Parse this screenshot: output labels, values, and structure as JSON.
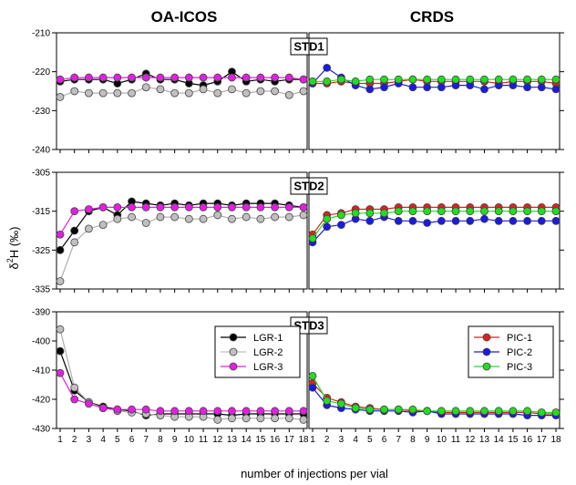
{
  "figure": {
    "titles": {
      "left": "OA-ICOS",
      "right": "CRDS"
    },
    "ylabel": "δ²H (‰)",
    "ylabel_prefix": "δ",
    "ylabel_sup": "2",
    "ylabel_suffix": "H (‰)",
    "xlabel": "number of injections per vial"
  },
  "chart_data": [
    {
      "type": "line",
      "panel": "STD1",
      "instrument": "OA-ICOS",
      "label": "STD1",
      "x": [
        1,
        2,
        3,
        4,
        5,
        6,
        7,
        8,
        9,
        10,
        11,
        12,
        13,
        14,
        15,
        16,
        17,
        18
      ],
      "ylim": [
        -240,
        -210
      ],
      "yticks": [
        -210,
        -220,
        -230,
        -240
      ],
      "series": [
        {
          "name": "LGR-1",
          "color": "#000000",
          "values": [
            -222.5,
            -222,
            -222,
            -222,
            -223,
            -222,
            -220.5,
            -222,
            -222,
            -223,
            -223.5,
            -222.5,
            -220,
            -222.5,
            -222,
            -222.5,
            -222,
            -222
          ]
        },
        {
          "name": "LGR-2",
          "color": "#c0c0c0",
          "values": [
            -226.5,
            -225,
            -225.5,
            -225.5,
            -225.5,
            -225.5,
            -224,
            -224.5,
            -225.5,
            -225.5,
            -224.5,
            -225.5,
            -224.5,
            -225.5,
            -225,
            -225,
            -226,
            -225
          ]
        },
        {
          "name": "LGR-3",
          "color": "#e020e0",
          "values": [
            -222,
            -221.5,
            -221.5,
            -221.5,
            -221.5,
            -221.5,
            -221.5,
            -221.5,
            -221.5,
            -221.5,
            -221.5,
            -221.5,
            -221.5,
            -221.5,
            -221.5,
            -221.5,
            -221.5,
            -222
          ]
        }
      ]
    },
    {
      "type": "line",
      "panel": "STD1",
      "instrument": "CRDS",
      "x": [
        1,
        2,
        3,
        4,
        5,
        6,
        7,
        8,
        9,
        10,
        11,
        12,
        13,
        14,
        15,
        16,
        17,
        18
      ],
      "ylim": [
        -240,
        -210
      ],
      "series": [
        {
          "name": "PIC-1",
          "color": "#e02020",
          "values": [
            -223,
            -223,
            -222.5,
            -223,
            -223,
            -223,
            -222.5,
            -222,
            -222.5,
            -222.5,
            -222.5,
            -222.5,
            -222.5,
            -223,
            -222.5,
            -222.5,
            -222.5,
            -223
          ]
        },
        {
          "name": "PIC-2",
          "color": "#1a1ae0",
          "values": [
            -223,
            -219,
            -221.5,
            -223.5,
            -224.5,
            -224,
            -223,
            -224,
            -224,
            -224,
            -223.5,
            -223.5,
            -224.5,
            -223.5,
            -223.5,
            -224,
            -224,
            -224.5
          ]
        },
        {
          "name": "PIC-3",
          "color": "#22dd22",
          "values": [
            -222.5,
            -222.5,
            -222,
            -222.5,
            -222,
            -222,
            -222,
            -222,
            -222,
            -222,
            -222,
            -222,
            -222,
            -222,
            -222,
            -222,
            -222,
            -222
          ]
        }
      ]
    },
    {
      "type": "line",
      "panel": "STD2",
      "instrument": "OA-ICOS",
      "label": "STD2",
      "x": [
        1,
        2,
        3,
        4,
        5,
        6,
        7,
        8,
        9,
        10,
        11,
        12,
        13,
        14,
        15,
        16,
        17,
        18
      ],
      "ylim": [
        -335,
        -305
      ],
      "yticks": [
        -305,
        -315,
        -325,
        -335
      ],
      "series": [
        {
          "name": "LGR-1",
          "color": "#000000",
          "values": [
            -325,
            -320,
            -315,
            -314,
            -316,
            -312.5,
            -313,
            -313.5,
            -313,
            -313.5,
            -313,
            -313,
            -313.5,
            -313,
            -313,
            -313,
            -313.5,
            -314
          ]
        },
        {
          "name": "LGR-2",
          "color": "#c0c0c0",
          "values": [
            -333,
            -323,
            -319.5,
            -318.5,
            -317,
            -316.5,
            -318,
            -316.5,
            -316.5,
            -317,
            -317,
            -316,
            -317,
            -316.5,
            -317,
            -316.5,
            -316.5,
            -316
          ]
        },
        {
          "name": "LGR-3",
          "color": "#e020e0",
          "values": [
            -321,
            -315,
            -314.5,
            -314,
            -314,
            -314,
            -314,
            -314,
            -314,
            -314,
            -314,
            -314,
            -314,
            -314,
            -314,
            -314,
            -314,
            -314
          ]
        }
      ]
    },
    {
      "type": "line",
      "panel": "STD2",
      "instrument": "CRDS",
      "x": [
        1,
        2,
        3,
        4,
        5,
        6,
        7,
        8,
        9,
        10,
        11,
        12,
        13,
        14,
        15,
        16,
        17,
        18
      ],
      "ylim": [
        -335,
        -305
      ],
      "series": [
        {
          "name": "PIC-1",
          "color": "#e02020",
          "values": [
            -321,
            -316,
            -315.5,
            -314.5,
            -314.5,
            -314.5,
            -314,
            -314,
            -314,
            -314,
            -314,
            -314,
            -314,
            -314,
            -314,
            -314,
            -314,
            -314
          ]
        },
        {
          "name": "PIC-2",
          "color": "#1a1ae0",
          "values": [
            -323,
            -319,
            -318.5,
            -317,
            -317.5,
            -316.5,
            -317.5,
            -317.5,
            -318,
            -317.5,
            -317.5,
            -317.5,
            -317,
            -317.5,
            -317.5,
            -317.5,
            -317.5,
            -317.5
          ]
        },
        {
          "name": "PIC-3",
          "color": "#22dd22",
          "values": [
            -322,
            -317,
            -316,
            -315.5,
            -315.5,
            -315.5,
            -315,
            -315,
            -315,
            -315,
            -315,
            -315,
            -315,
            -315,
            -315,
            -315,
            -315,
            -315
          ]
        }
      ]
    },
    {
      "type": "line",
      "panel": "STD3",
      "instrument": "OA-ICOS",
      "label": "STD3",
      "x": [
        1,
        2,
        3,
        4,
        5,
        6,
        7,
        8,
        9,
        10,
        11,
        12,
        13,
        14,
        15,
        16,
        17,
        18
      ],
      "ylim": [
        -430,
        -390
      ],
      "yticks": [
        -390,
        -400,
        -410,
        -420,
        -430
      ],
      "series": [
        {
          "name": "LGR-1",
          "color": "#000000",
          "values": [
            -403.5,
            -417,
            -421,
            -422.5,
            -423.5,
            -424,
            -425.5,
            -425,
            -425,
            -425,
            -425,
            -425,
            -425.5,
            -425,
            -425,
            -425,
            -425,
            -425
          ]
        },
        {
          "name": "LGR-2",
          "color": "#c0c0c0",
          "values": [
            -396,
            -416,
            -421,
            -423,
            -424,
            -424.5,
            -425,
            -425.5,
            -426,
            -426,
            -426,
            -427,
            -426.5,
            -426.5,
            -426.5,
            -426.5,
            -426.5,
            -427
          ]
        },
        {
          "name": "LGR-3",
          "color": "#e020e0",
          "values": [
            -411,
            -420,
            -421.5,
            -423,
            -423.5,
            -423.5,
            -423.5,
            -424,
            -424,
            -424,
            -424,
            -424,
            -424,
            -424,
            -424,
            -424,
            -424,
            -424
          ]
        }
      ]
    },
    {
      "type": "line",
      "panel": "STD3",
      "instrument": "CRDS",
      "x": [
        1,
        2,
        3,
        4,
        5,
        6,
        7,
        8,
        9,
        10,
        11,
        12,
        13,
        14,
        15,
        16,
        17,
        18
      ],
      "ylim": [
        -430,
        -390
      ],
      "series": [
        {
          "name": "PIC-1",
          "color": "#e02020",
          "values": [
            -414.5,
            -419.5,
            -421,
            -422.5,
            -423,
            -423.5,
            -423.5,
            -424,
            -424,
            -424.5,
            -424.5,
            -424.5,
            -424.5,
            -424.5,
            -424.5,
            -424.5,
            -425,
            -425
          ]
        },
        {
          "name": "PIC-2",
          "color": "#1a1ae0",
          "values": [
            -416,
            -422,
            -423,
            -423.5,
            -424,
            -424,
            -424,
            -424.5,
            -424,
            -425,
            -425,
            -425,
            -425,
            -425,
            -425,
            -425.5,
            -425.5,
            -425.5
          ]
        },
        {
          "name": "PIC-3",
          "color": "#22dd22",
          "values": [
            -412,
            -420.5,
            -421.5,
            -423,
            -423.5,
            -423.5,
            -423.5,
            -423.5,
            -424,
            -424,
            -424,
            -424,
            -424,
            -424,
            -424,
            -424,
            -424.5,
            -424.5
          ]
        }
      ]
    }
  ],
  "legends": {
    "lgr": [
      "LGR-1",
      "LGR-2",
      "LGR-3"
    ],
    "pic": [
      "PIC-1",
      "PIC-2",
      "PIC-3"
    ]
  },
  "x_ticks": [
    1,
    2,
    3,
    4,
    5,
    6,
    7,
    8,
    9,
    10,
    11,
    12,
    13,
    14,
    15,
    16,
    17,
    18
  ]
}
